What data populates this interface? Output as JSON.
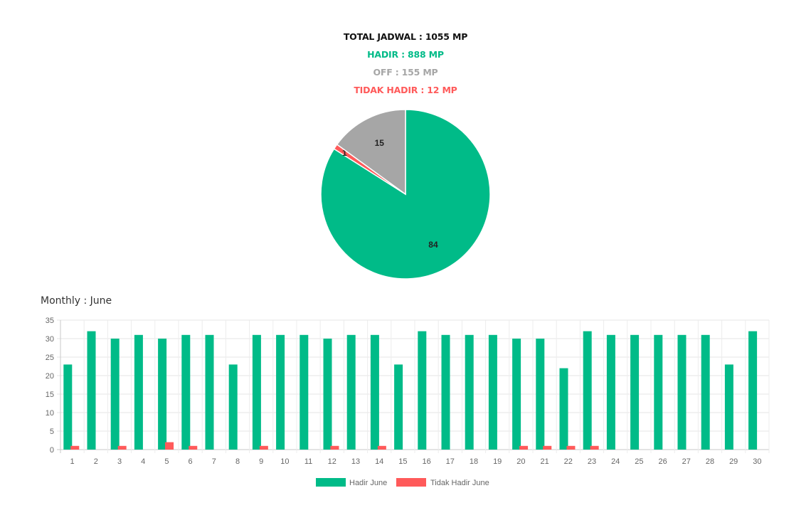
{
  "summary": {
    "total": "TOTAL JADWAL : 1055 MP",
    "hadir": "HADIR : 888 MP",
    "off": "OFF : 155 MP",
    "tidak_hadir": "TIDAK HADIR : 12 MP"
  },
  "colors": {
    "hadir": "#00bb88",
    "off": "#a6a6a6",
    "tidak_hadir": "#ff5a5a",
    "total": "#111111"
  },
  "monthly": {
    "title": "Monthly : June"
  },
  "chart_data": [
    {
      "type": "pie",
      "slices": [
        {
          "label": "Hadir",
          "value": 84,
          "color": "#00bb88"
        },
        {
          "label": "Off",
          "value": 15,
          "color": "#a6a6a6"
        },
        {
          "label": "Tidak Hadir",
          "value": 1,
          "color": "#ff5a5a"
        }
      ],
      "data_labels": [
        "84",
        "15",
        "1"
      ]
    },
    {
      "type": "bar",
      "categories": [
        "1",
        "2",
        "3",
        "4",
        "5",
        "6",
        "7",
        "8",
        "9",
        "10",
        "11",
        "12",
        "13",
        "14",
        "15",
        "16",
        "17",
        "18",
        "19",
        "20",
        "21",
        "22",
        "23",
        "24",
        "25",
        "26",
        "27",
        "28",
        "29",
        "30"
      ],
      "series": [
        {
          "name": "Hadir June",
          "color": "#00bb88",
          "values": [
            23,
            32,
            30,
            31,
            30,
            31,
            31,
            23,
            31,
            31,
            31,
            30,
            31,
            31,
            23,
            32,
            31,
            31,
            31,
            30,
            30,
            22,
            32,
            31,
            31,
            31,
            31,
            31,
            23,
            32
          ]
        },
        {
          "name": "Tidak Hadir June",
          "color": "#ff5a5a",
          "values": [
            1,
            0,
            1,
            0,
            2,
            1,
            0,
            0,
            1,
            0,
            0,
            1,
            0,
            1,
            0,
            0,
            0,
            0,
            0,
            1,
            1,
            1,
            1,
            0,
            0,
            0,
            0,
            0,
            0,
            0
          ]
        }
      ],
      "ylim": [
        0,
        35
      ],
      "yticks": [
        0,
        5,
        10,
        15,
        20,
        25,
        30,
        35
      ],
      "grid": true,
      "legend": "bottom"
    }
  ]
}
